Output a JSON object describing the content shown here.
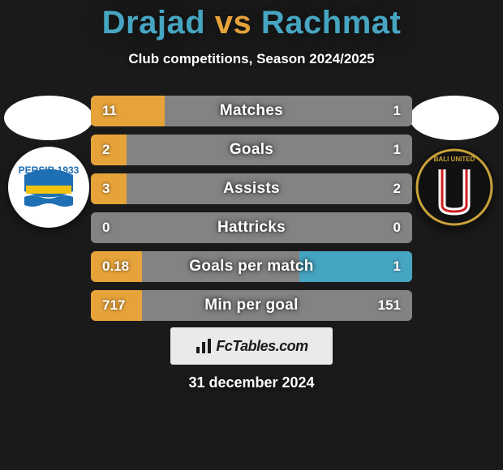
{
  "title": {
    "player1": "Drajad",
    "vs": "vs",
    "player2": "Rachmat",
    "color1": "#46a6c2",
    "colorVs": "#e6a33a",
    "color2": "#46a6c2",
    "fontsize": 40
  },
  "subtitle": "Club competitions, Season 2024/2025",
  "players": {
    "left": {
      "club_label": "PERSIB 1933",
      "club_colors": {
        "bg": "#ffffff",
        "top": "#1e6fb3",
        "mid": "#f2c40f",
        "low": "#1e6fb3"
      }
    },
    "right": {
      "club_label": "BALI UNITED",
      "club_colors": {
        "bg": "#111111",
        "accent": "#cf1e1e",
        "gold": "#c9a23a"
      }
    }
  },
  "bars": {
    "neutral_color": "#838383",
    "left_color": "#e6a33a",
    "right_color": "#46a6c2",
    "rows": [
      {
        "label": "Matches",
        "left_val": "11",
        "right_val": "1",
        "left_pct": 0.23,
        "right_pct": 0.0
      },
      {
        "label": "Goals",
        "left_val": "2",
        "right_val": "1",
        "left_pct": 0.11,
        "right_pct": 0.0
      },
      {
        "label": "Assists",
        "left_val": "3",
        "right_val": "2",
        "left_pct": 0.11,
        "right_pct": 0.0
      },
      {
        "label": "Hattricks",
        "left_val": "0",
        "right_val": "0",
        "left_pct": 0.0,
        "right_pct": 0.0
      },
      {
        "label": "Goals per match",
        "left_val": "0.18",
        "right_val": "1",
        "left_pct": 0.16,
        "right_pct": 0.35
      },
      {
        "label": "Min per goal",
        "left_val": "717",
        "right_val": "151",
        "left_pct": 0.16,
        "right_pct": 0.0
      }
    ]
  },
  "footer": {
    "brand": "FcTables.com",
    "date": "31 december 2024"
  }
}
